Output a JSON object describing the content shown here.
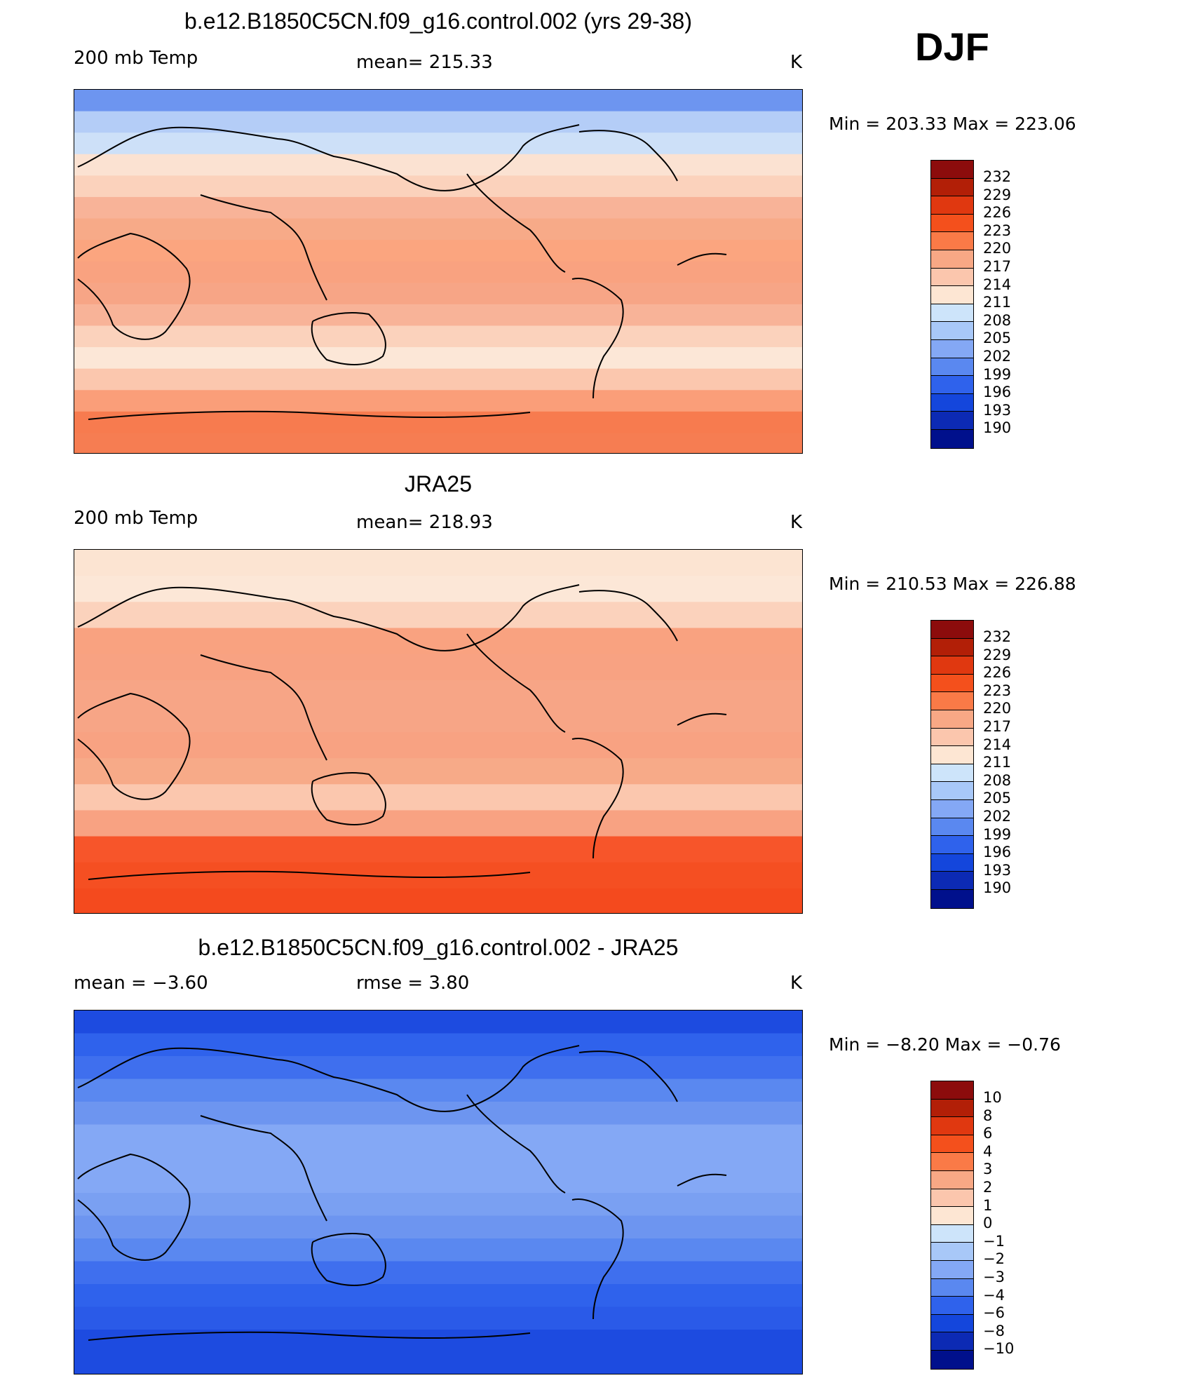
{
  "season": "DJF",
  "panels": [
    {
      "title": "b.e12.B1850C5CN.f09_g16.control.002 (yrs 29-38)",
      "left_label": "200 mb Temp",
      "center_label": "mean=  215.33",
      "units": "K",
      "minmax": "Min  =  203.33  Max  =  223.06",
      "bands": [
        "#6d95f0",
        "#b4cdf7",
        "#cde0f8",
        "#fbe2d2",
        "#fbd2bc",
        "#f8b398",
        "#f7aa88",
        "#fba57f",
        "#f9a280",
        "#f7a586",
        "#f8b398",
        "#fbd2bc",
        "#fce7d7",
        "#fbc7ae",
        "#fa9e79",
        "#f77b4f",
        "#f67d52"
      ],
      "colorbar": {
        "labels": [
          "232",
          "229",
          "226",
          "223",
          "220",
          "217",
          "214",
          "211",
          "208",
          "205",
          "202",
          "199",
          "196",
          "193",
          "190"
        ],
        "colors": [
          "#8c0c0c",
          "#b21f07",
          "#e03810",
          "#f4501c",
          "#fa7a47",
          "#f8a885",
          "#fbc6ad",
          "#fde6d3",
          "#cde4fa",
          "#a8c8f8",
          "#84a8f5",
          "#5a88f0",
          "#2f62ec",
          "#1446dc",
          "#0c2ab4",
          "#00108c"
        ]
      },
      "icons": [
        "contour-map-icon",
        "coastline-icon"
      ]
    },
    {
      "title": "JRA25",
      "left_label": "200 mb Temp",
      "center_label": "mean=  218.93",
      "units": "K",
      "minmax": "Min  =  210.53  Max  =  226.88",
      "bands": [
        "#fce4d2",
        "#fce7d7",
        "#fbd2bc",
        "#f9a280",
        "#f8a282",
        "#f7a586",
        "#f7a586",
        "#f8a282",
        "#f7aa88",
        "#fbc7ae",
        "#f8a282",
        "#f7552a",
        "#f54f22",
        "#f44a1e"
      ],
      "colorbar": {
        "labels": [
          "232",
          "229",
          "226",
          "223",
          "220",
          "217",
          "214",
          "211",
          "208",
          "205",
          "202",
          "199",
          "196",
          "193",
          "190"
        ],
        "colors": [
          "#8c0c0c",
          "#b21f07",
          "#e03810",
          "#f4501c",
          "#fa7a47",
          "#f8a885",
          "#fbc6ad",
          "#fde6d3",
          "#cde4fa",
          "#a8c8f8",
          "#84a8f5",
          "#5a88f0",
          "#2f62ec",
          "#1446dc",
          "#0c2ab4",
          "#00108c"
        ]
      },
      "icons": [
        "contour-map-icon",
        "coastline-icon"
      ]
    },
    {
      "title": "b.e12.B1850C5CN.f09_g16.control.002 - JRA25",
      "left_label": "mean  =    −3.60",
      "center_label": "rmse  =      3.80",
      "units": "K",
      "minmax": "Min  =    −8.20  Max  =    −0.76",
      "bands": [
        "#1d4be0",
        "#2f62ec",
        "#3f6fee",
        "#5a88f0",
        "#6d95f0",
        "#84a8f5",
        "#84a8f5",
        "#84a8f5",
        "#7aa0f2",
        "#6d95f0",
        "#5a88f0",
        "#3f6fee",
        "#2f62ec",
        "#2a5ae8",
        "#1d4be0",
        "#1d4be0"
      ],
      "colorbar": {
        "labels": [
          "10",
          "8",
          "6",
          "4",
          "3",
          "2",
          "1",
          "0",
          "−1",
          "−2",
          "−3",
          "−4",
          "−6",
          "−8",
          "−10"
        ],
        "colors": [
          "#8c0c0c",
          "#b21f07",
          "#e03810",
          "#f4501c",
          "#fa7a47",
          "#f8a885",
          "#fbc6ad",
          "#fde6d3",
          "#cde4fa",
          "#a8c8f8",
          "#84a8f5",
          "#5a88f0",
          "#2f62ec",
          "#1446dc",
          "#0c2ab4",
          "#00108c"
        ]
      },
      "icons": [
        "contour-map-icon",
        "coastline-icon"
      ]
    }
  ]
}
